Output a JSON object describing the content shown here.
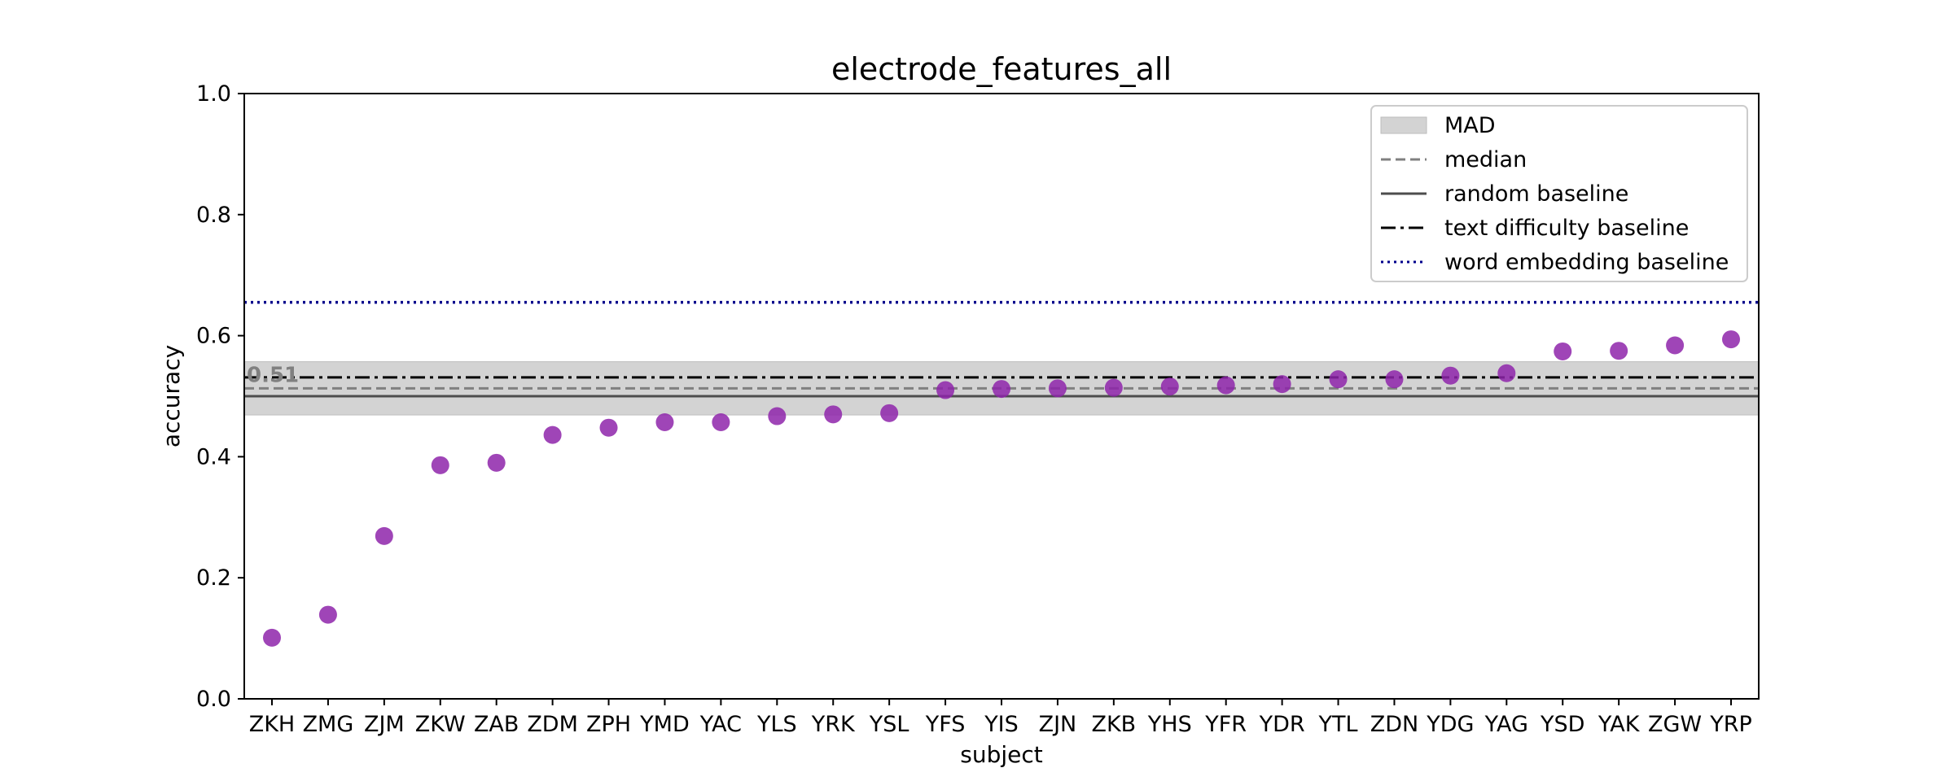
{
  "chart_data": {
    "type": "scatter",
    "title": "electrode_features_all",
    "xlabel": "subject",
    "ylabel": "accuracy",
    "ylim": [
      0.0,
      1.0
    ],
    "yticks": [
      0.0,
      0.2,
      0.4,
      0.6,
      0.8,
      1.0
    ],
    "ytick_labels": [
      "0.0",
      "0.2",
      "0.4",
      "0.6",
      "0.8",
      "1.0"
    ],
    "categories": [
      "ZKH",
      "ZMG",
      "ZJM",
      "ZKW",
      "ZAB",
      "ZDM",
      "ZPH",
      "YMD",
      "YAC",
      "YLS",
      "YRK",
      "YSL",
      "YFS",
      "YIS",
      "ZJN",
      "ZKB",
      "YHS",
      "YFR",
      "YDR",
      "YTL",
      "ZDN",
      "YDG",
      "YAG",
      "YSD",
      "YAK",
      "ZGW",
      "YRP"
    ],
    "values": [
      0.101,
      0.139,
      0.269,
      0.386,
      0.39,
      0.436,
      0.448,
      0.457,
      0.457,
      0.467,
      0.47,
      0.472,
      0.51,
      0.512,
      0.513,
      0.514,
      0.516,
      0.518,
      0.52,
      0.528,
      0.528,
      0.534,
      0.538,
      0.574,
      0.575,
      0.584,
      0.594
    ],
    "point_color": "#8e24aa",
    "mad_band": [
      0.469,
      0.557
    ],
    "median": 0.513,
    "median_label": "0.51",
    "random_baseline": 0.5,
    "text_difficulty_baseline": 0.531,
    "word_embedding_baseline": 0.655,
    "grid": false,
    "legend_position": "top-right",
    "legend": [
      {
        "label": "MAD",
        "style": "patch",
        "color": "#d3d3d3"
      },
      {
        "label": "median",
        "style": "dashed",
        "color": "#808080"
      },
      {
        "label": "random baseline",
        "style": "solid",
        "color": "#4d4d4d"
      },
      {
        "label": "text difficulty baseline",
        "style": "dashdot",
        "color": "#000000"
      },
      {
        "label": "word embedding baseline",
        "style": "dotted",
        "color": "#00008b"
      }
    ]
  }
}
